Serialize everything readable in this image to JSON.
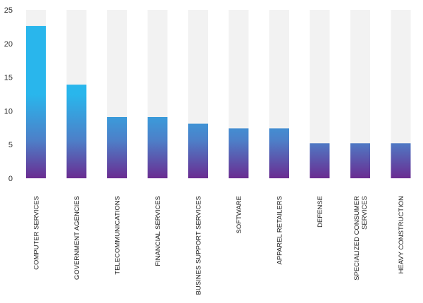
{
  "chart_data": {
    "type": "bar",
    "title": "",
    "xlabel": "",
    "ylabel": "",
    "ylim": [
      0,
      25
    ],
    "yticks": [
      0,
      5,
      10,
      15,
      20,
      25
    ],
    "grid": false,
    "legend": "none",
    "categories": [
      "COMPUTER SERVICES",
      "GOVERNMENT AGENCIES",
      "TELECOMMUNICATIONS",
      "FINANCIAL SERVICES",
      "BUSINES SUPPORT SERVICES",
      "SOFTWARE",
      "APPAREL RETAILERS",
      "DEFENSE",
      "SPECIALIZED CONSUMER SERVICES",
      "HEAVY CONSTRUCTION"
    ],
    "category_lines": [
      [
        "COMPUTER SERVICES"
      ],
      [
        "GOVERNMENT AGENCIES"
      ],
      [
        "TELECOMMUNICATIONS"
      ],
      [
        "FINANCIAL SERVICES"
      ],
      [
        "BUSINES SUPPORT SERVICES"
      ],
      [
        "SOFTWARE"
      ],
      [
        "APPAREL RETAILERS"
      ],
      [
        "DEFENSE"
      ],
      [
        "SPECIALIZED CONSUMER",
        "SERVICES"
      ],
      [
        "HEAVY CONSTRUCTION"
      ]
    ],
    "values": [
      22.6,
      13.9,
      9.1,
      9.1,
      8.1,
      7.4,
      7.4,
      5.2,
      5.2,
      5.2
    ],
    "colors": {
      "bar_top": "#29b6ec",
      "bar_bottom": "#6a2c91",
      "track": "#f2f2f2",
      "axis_text": "#333333"
    }
  }
}
